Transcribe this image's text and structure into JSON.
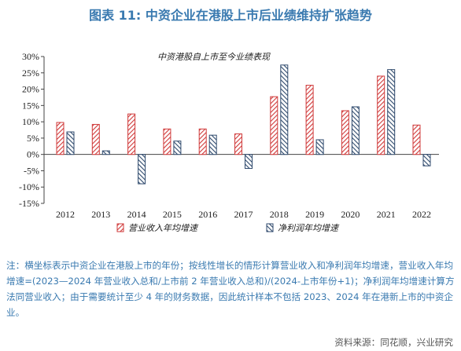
{
  "figure_title": "图表 11: 中资企业在港股上市后业绩维持扩张趋势",
  "note": "注：横坐标表示中资企业在港股上市的年份；按线性增长的情形计算营业收入和净利润年均增速，营业收入年均增速=(2023—2024 年营业收入总和/上市前 2 年营业收入总和)/(2024-上市年份+1)；净利润年均增速计算方法同营业收入；由于需要统计至少 4 年的财务数据，因此统计样本不包括 2023、2024 年在港新上市的中资企业。",
  "source": "资料来源：同花顺，兴业研究",
  "colors": {
    "revenue": "#d03a3a",
    "profit": "#2f4a6d",
    "title": "#3a7ab0"
  },
  "chart_data": {
    "type": "bar",
    "title": "中资港股自上市至今业绩表现",
    "categories": [
      "2012",
      "2013",
      "2014",
      "2015",
      "2016",
      "2017",
      "2018",
      "2019",
      "2020",
      "2021",
      "2022"
    ],
    "series": [
      {
        "name": "营业收入年均增速",
        "values": [
          9.8,
          9.2,
          12.4,
          7.8,
          7.8,
          6.3,
          17.7,
          21.2,
          13.4,
          24.0,
          9.0
        ]
      },
      {
        "name": "净利润年均增速",
        "values": [
          6.9,
          1.1,
          -9.0,
          4.1,
          5.9,
          -4.3,
          27.4,
          4.5,
          14.6,
          26.0,
          -3.5
        ]
      }
    ],
    "ylim": [
      -15,
      30
    ],
    "yticks": [
      -15,
      -10,
      -5,
      0,
      5,
      10,
      15,
      20,
      25,
      30
    ],
    "ytick_labels": [
      "-15%",
      "-10%",
      "-5%",
      "0%",
      "5%",
      "10%",
      "15%",
      "20%",
      "25%",
      "30%"
    ],
    "legend_position": "bottom"
  }
}
